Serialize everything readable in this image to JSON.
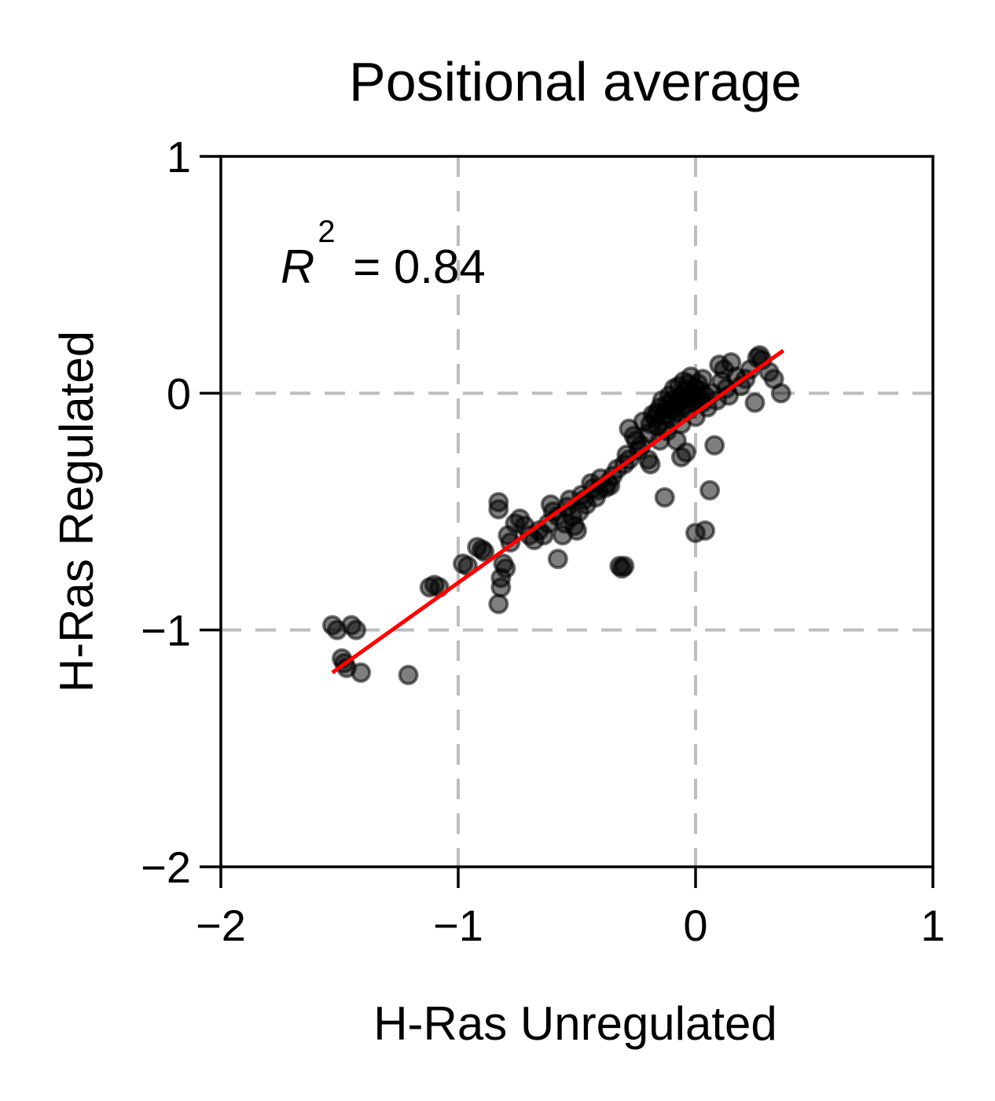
{
  "chart_data": {
    "type": "scatter",
    "title": "Positional average",
    "xlabel": "H-Ras Unregulated",
    "ylabel": "H-Ras Regulated",
    "xlim": [
      -2,
      1
    ],
    "ylim": [
      -2,
      1
    ],
    "xticks": [
      -2,
      -1,
      0,
      1
    ],
    "yticks": [
      -2,
      -1,
      0,
      1
    ],
    "xtick_labels": [
      "−2",
      "−1",
      "0",
      "1"
    ],
    "ytick_labels": [
      "−2",
      "−1",
      "0",
      "1"
    ],
    "grid": true,
    "annotation": {
      "symbol": "R",
      "superscript": "2",
      "text": " = 0.84"
    },
    "fit_line": {
      "x": [
        -1.53,
        0.37
      ],
      "y": [
        -1.18,
        0.18
      ],
      "color": "#ff0000"
    },
    "point_color": "#000000",
    "points": [
      [
        -1.53,
        -0.98
      ],
      [
        -1.51,
        -1.0
      ],
      [
        -1.49,
        -1.12
      ],
      [
        -1.48,
        -1.14
      ],
      [
        -1.47,
        -1.16
      ],
      [
        -1.45,
        -0.98
      ],
      [
        -1.43,
        -1.0
      ],
      [
        -1.41,
        -1.18
      ],
      [
        -1.21,
        -1.19
      ],
      [
        -1.12,
        -0.82
      ],
      [
        -1.1,
        -0.81
      ],
      [
        -1.08,
        -0.82
      ],
      [
        -0.98,
        -0.72
      ],
      [
        -0.96,
        -0.73
      ],
      [
        -0.92,
        -0.65
      ],
      [
        -0.9,
        -0.66
      ],
      [
        -0.89,
        -0.67
      ],
      [
        -0.83,
        -0.46
      ],
      [
        -0.83,
        -0.49
      ],
      [
        -0.82,
        -0.78
      ],
      [
        -0.82,
        -0.82
      ],
      [
        -0.83,
        -0.89
      ],
      [
        -0.81,
        -0.72
      ],
      [
        -0.8,
        -0.74
      ],
      [
        -0.79,
        -0.6
      ],
      [
        -0.78,
        -0.63
      ],
      [
        -0.76,
        -0.55
      ],
      [
        -0.74,
        -0.53
      ],
      [
        -0.72,
        -0.56
      ],
      [
        -0.7,
        -0.6
      ],
      [
        -0.68,
        -0.62
      ],
      [
        -0.66,
        -0.58
      ],
      [
        -0.64,
        -0.6
      ],
      [
        -0.62,
        -0.55
      ],
      [
        -0.61,
        -0.47
      ],
      [
        -0.6,
        -0.5
      ],
      [
        -0.58,
        -0.52
      ],
      [
        -0.58,
        -0.7
      ],
      [
        -0.56,
        -0.6
      ],
      [
        -0.55,
        -0.55
      ],
      [
        -0.54,
        -0.48
      ],
      [
        -0.53,
        -0.45
      ],
      [
        -0.52,
        -0.52
      ],
      [
        -0.51,
        -0.56
      ],
      [
        -0.5,
        -0.58
      ],
      [
        -0.49,
        -0.5
      ],
      [
        -0.48,
        -0.43
      ],
      [
        -0.47,
        -0.45
      ],
      [
        -0.46,
        -0.47
      ],
      [
        -0.44,
        -0.38
      ],
      [
        -0.43,
        -0.4
      ],
      [
        -0.42,
        -0.44
      ],
      [
        -0.41,
        -0.41
      ],
      [
        -0.4,
        -0.36
      ],
      [
        -0.38,
        -0.4
      ],
      [
        -0.37,
        -0.38
      ],
      [
        -0.36,
        -0.39
      ],
      [
        -0.35,
        -0.35
      ],
      [
        -0.33,
        -0.32
      ],
      [
        -0.32,
        -0.73
      ],
      [
        -0.31,
        -0.74
      ],
      [
        -0.3,
        -0.73
      ],
      [
        -0.3,
        -0.3
      ],
      [
        -0.29,
        -0.26
      ],
      [
        -0.28,
        -0.28
      ],
      [
        -0.28,
        -0.15
      ],
      [
        -0.26,
        -0.18
      ],
      [
        -0.25,
        -0.2
      ],
      [
        -0.24,
        -0.24
      ],
      [
        -0.23,
        -0.22
      ],
      [
        -0.22,
        -0.12
      ],
      [
        -0.2,
        -0.28
      ],
      [
        -0.2,
        -0.17
      ],
      [
        -0.19,
        -0.3
      ],
      [
        -0.19,
        -0.13
      ],
      [
        -0.18,
        -0.09
      ],
      [
        -0.17,
        -0.1
      ],
      [
        -0.16,
        -0.08
      ],
      [
        -0.16,
        -0.14
      ],
      [
        -0.15,
        -0.06
      ],
      [
        -0.15,
        -0.2
      ],
      [
        -0.14,
        -0.12
      ],
      [
        -0.14,
        -0.03
      ],
      [
        -0.13,
        -0.09
      ],
      [
        -0.13,
        -0.44
      ],
      [
        -0.12,
        -0.05
      ],
      [
        -0.12,
        -0.16
      ],
      [
        -0.11,
        -0.07
      ],
      [
        -0.11,
        -0.01
      ],
      [
        -0.1,
        -0.11
      ],
      [
        -0.1,
        -0.03
      ],
      [
        -0.09,
        -0.06
      ],
      [
        -0.09,
        0.02
      ],
      [
        -0.08,
        -0.08
      ],
      [
        -0.08,
        -0.2
      ],
      [
        -0.07,
        -0.04
      ],
      [
        -0.07,
        0.03
      ],
      [
        -0.06,
        -0.01
      ],
      [
        -0.06,
        -0.13
      ],
      [
        -0.06,
        -0.27
      ],
      [
        -0.05,
        -0.05
      ],
      [
        -0.05,
        0.05
      ],
      [
        -0.04,
        -0.02
      ],
      [
        -0.04,
        0.01
      ],
      [
        -0.04,
        -0.25
      ],
      [
        -0.03,
        -0.07
      ],
      [
        -0.03,
        0.04
      ],
      [
        -0.02,
        -0.02
      ],
      [
        -0.02,
        0.07
      ],
      [
        -0.01,
        0.0
      ],
      [
        -0.01,
        -0.04
      ],
      [
        0.0,
        -0.1
      ],
      [
        0.0,
        0.02
      ],
      [
        0.01,
        -0.02
      ],
      [
        0.01,
        0.04
      ],
      [
        0.02,
        0.01
      ],
      [
        0.03,
        -0.04
      ],
      [
        0.03,
        0.06
      ],
      [
        0.04,
        -0.01
      ],
      [
        0.05,
        -0.06
      ],
      [
        0.06,
        -0.41
      ],
      [
        0.04,
        -0.58
      ],
      [
        0.0,
        -0.59
      ],
      [
        0.07,
        0.0
      ],
      [
        0.08,
        -0.22
      ],
      [
        0.09,
        -0.03
      ],
      [
        0.1,
        0.12
      ],
      [
        0.11,
        0.05
      ],
      [
        0.12,
        0.1
      ],
      [
        0.13,
        0.02
      ],
      [
        0.14,
        -0.01
      ],
      [
        0.15,
        0.13
      ],
      [
        0.17,
        0.07
      ],
      [
        0.19,
        0.03
      ],
      [
        0.21,
        0.06
      ],
      [
        0.23,
        0.1
      ],
      [
        0.25,
        -0.04
      ],
      [
        0.26,
        0.15
      ],
      [
        0.27,
        0.16
      ],
      [
        0.28,
        0.14
      ],
      [
        0.31,
        0.09
      ],
      [
        0.33,
        0.06
      ],
      [
        0.36,
        0.0
      ]
    ]
  }
}
